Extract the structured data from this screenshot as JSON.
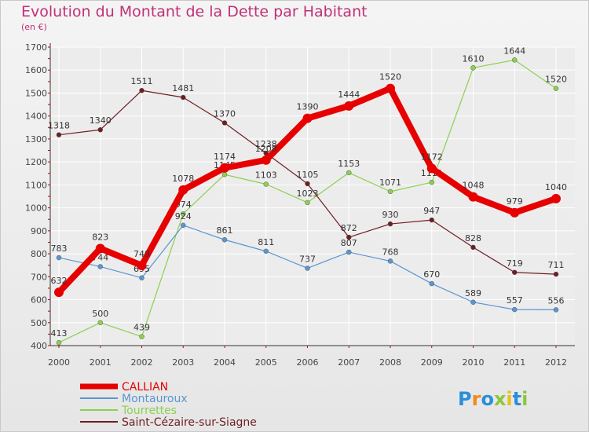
{
  "title": "Evolution du Montant de la Dette par Habitant",
  "subtitle": "(en €)",
  "logo": "Proxiti",
  "colors": {
    "title": "#c0307a",
    "grid": "#ffffff",
    "axis": "#333333"
  },
  "chart_data": {
    "type": "line",
    "title": "Evolution du Montant de la Dette par Habitant",
    "ylabel": "(en €)",
    "xlabel": "",
    "x": [
      "2000",
      "2001",
      "2002",
      "2003",
      "2004",
      "2005",
      "2006",
      "2007",
      "2008",
      "2009",
      "2010",
      "2011",
      "2012"
    ],
    "yticks": [
      400,
      500,
      600,
      700,
      800,
      900,
      1000,
      1100,
      1200,
      1300,
      1400,
      1500,
      1600,
      1700
    ],
    "ylim": [
      400,
      1700
    ],
    "grid": true,
    "legend": "bottom-left",
    "series": [
      {
        "name": "Saint-Cézaire-sur-Siagne",
        "color": "#6e1e23",
        "width": 1.2,
        "marker": 3,
        "values": [
          1318,
          1340,
          1511,
          1481,
          1370,
          1238,
          1105,
          872,
          930,
          947,
          828,
          719,
          711
        ]
      },
      {
        "name": "Tourrettes",
        "color": "#8cd050",
        "width": 1.2,
        "marker": 3,
        "values": [
          413,
          500,
          439,
          974,
          1145,
          1103,
          1023,
          1153,
          1071,
          1111,
          1610,
          1644,
          1520
        ]
      },
      {
        "name": "Montauroux",
        "color": "#5a96d2",
        "width": 1.2,
        "marker": 3,
        "values": [
          783,
          744,
          695,
          924,
          861,
          811,
          737,
          807,
          768,
          670,
          589,
          557,
          556
        ]
      },
      {
        "name": "CALLIAN",
        "color": "#e60000",
        "width": 8,
        "marker": 6,
        "values": [
          632,
          823,
          749,
          1078,
          1174,
          1208,
          1390,
          1444,
          1520,
          1172,
          1048,
          979,
          1040
        ]
      }
    ]
  }
}
